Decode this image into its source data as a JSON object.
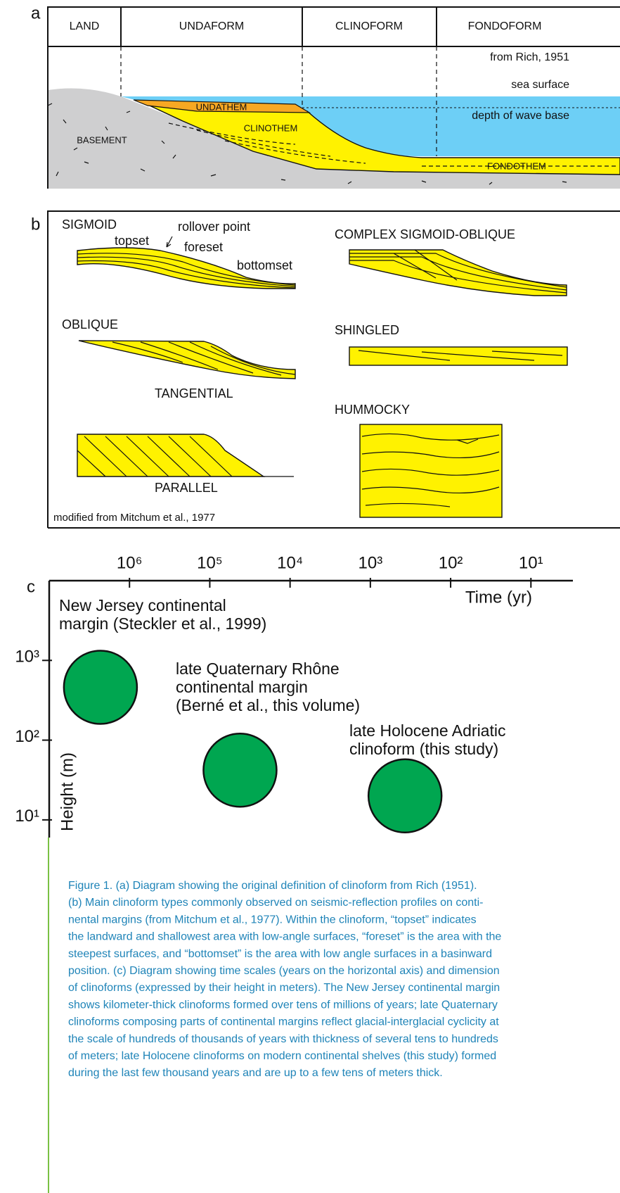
{
  "panel_a": {
    "label": "a",
    "headers": [
      "LAND",
      "UNDAFORM",
      "CLINOFORM",
      "FONDOFORM"
    ],
    "source": "from Rich, 1951",
    "sea_surface": "sea surface",
    "wave_base": "depth of wave base",
    "units": [
      "UNDATHEM",
      "CLINOTHEM",
      "BASEMENT",
      "FONDOTHEM"
    ]
  },
  "panel_b": {
    "label": "b",
    "types": [
      "SIGMOID",
      "COMPLEX SIGMOID-OBLIQUE",
      "OBLIQUE",
      "SHINGLED",
      "TANGENTIAL",
      "HUMMOCKY",
      "PARALLEL"
    ],
    "annotations": [
      "topset",
      "rollover point",
      "foreset",
      "bottomset"
    ],
    "source": "modified from Mitchum et al., 1977"
  },
  "chart_data": {
    "type": "scatter",
    "panel_label": "c",
    "x_label": "Time (yr)",
    "y_label": "Height (m)",
    "xscale": "log",
    "yscale": "log",
    "color": "#00a650",
    "x": [
      2300000,
      42000,
      370
    ],
    "values": [
      460,
      42,
      20
    ],
    "point_labels": [
      [
        "New Jersey continental",
        "margin (Steckler et al., 1999)"
      ],
      [
        "late Quaternary Rhône",
        "continental margin",
        "(Berné et al., this volume)"
      ],
      [
        "late Holocene Adriatic",
        "clinoform (this study)"
      ]
    ],
    "xlim": [
      10000000,
      3
    ],
    "ylim": [
      6,
      10000
    ],
    "xticks": [
      {
        "value": 1000000,
        "label": "10⁶"
      },
      {
        "value": 100000,
        "label": "10⁵"
      },
      {
        "value": 10000,
        "label": "10⁴"
      },
      {
        "value": 1000,
        "label": "10³"
      },
      {
        "value": 100,
        "label": "10²"
      },
      {
        "value": 10,
        "label": "10¹"
      }
    ],
    "yticks": [
      {
        "value": 1000,
        "label": "10³"
      },
      {
        "value": 100,
        "label": "10²"
      },
      {
        "value": 10,
        "label": "10¹"
      }
    ]
  },
  "caption": {
    "lines": [
      "Figure 1. (a) Diagram showing the original definition of clinoform from Rich (1951).",
      "(b) Main clinoform types commonly observed on seismic-reflection profiles on conti-",
      "nental margins (from Mitchum et al., 1977). Within the clinoform, “topset” indicates",
      "the landward and shallowest area with low-angle surfaces, “foreset” is the area with the",
      "steepest surfaces, and “bottomset” is the area with low angle surfaces in a basinward",
      "position. (c) Diagram showing time scales (years on the horizontal axis) and dimension",
      "of clinoforms (expressed by their height in meters). The New Jersey continental margin",
      "shows kilometer-thick clinoforms formed over tens of millions of years; late Quaternary",
      "clinoforms composing parts of continental margins reflect glacial-interglacial cyclicity at",
      "the scale of hundreds of thousands of years with thickness of several tens to hundreds",
      "of meters; late Holocene clinoforms on modern continental shelves (this study) formed",
      "during the last few thousand years and are up to a few tens of meters thick."
    ]
  }
}
